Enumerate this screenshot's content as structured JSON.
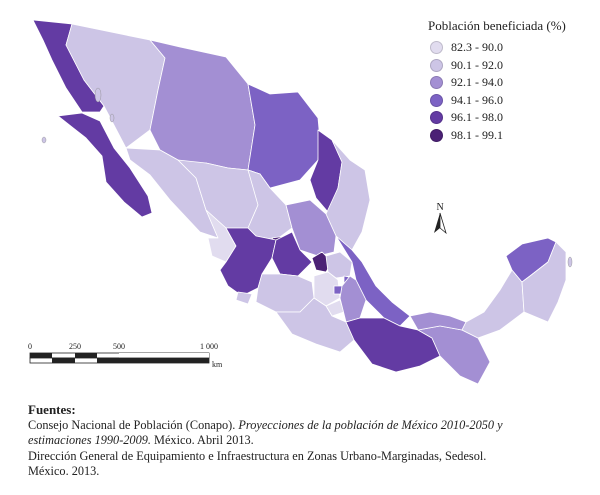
{
  "legend": {
    "title": "Población beneficiada (%)",
    "classes": [
      {
        "label": "82.3 - 90.0",
        "color": "#e1dcef"
      },
      {
        "label": "90.1 - 92.0",
        "color": "#cdc5e6"
      },
      {
        "label": "92.1 - 94.0",
        "color": "#a38fd3"
      },
      {
        "label": "94.1 - 96.0",
        "color": "#7c62c4"
      },
      {
        "label": "96.1 - 98.0",
        "color": "#633ba3"
      },
      {
        "label": "98.1 - 99.1",
        "color": "#4b2175"
      }
    ]
  },
  "north": {
    "label": "N"
  },
  "scale": {
    "ticks": [
      "0",
      "250",
      "500",
      "1 000"
    ],
    "unit": "km"
  },
  "sources": {
    "heading": "Fuentes:",
    "line1_a": "Consejo Nacional de Población (Conapo). ",
    "line1_b": "Proyecciones de la población de México 2010-2050 y",
    "line2_a": "estimaciones 1990-2009.",
    "line2_b": " México. Abril 2013.",
    "line3": "Dirección General de Equipamiento e Infraestructura en Zonas Urbano-Marginadas, Sedesol.",
    "line4": "México. 2013."
  }
}
